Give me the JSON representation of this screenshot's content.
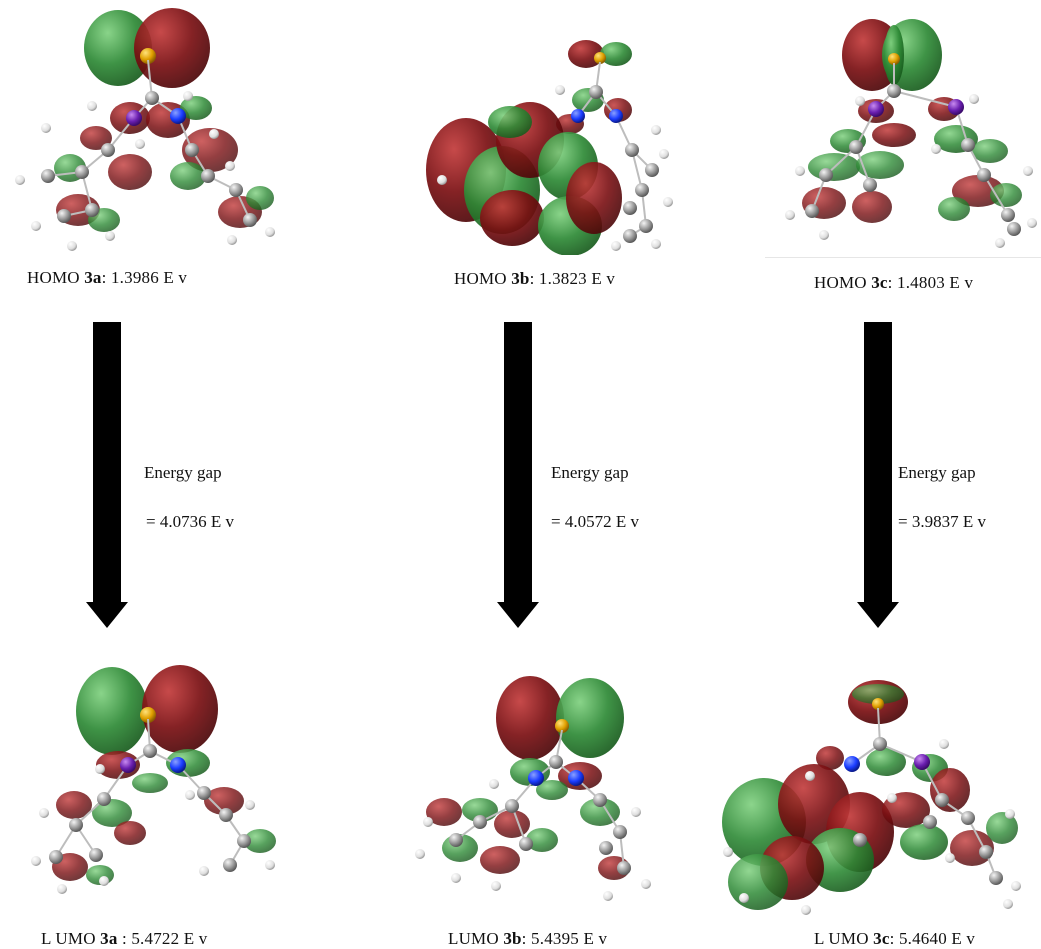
{
  "columns": [
    {
      "id": "3a",
      "homo": {
        "prefix": "HOMO ",
        "compound": "3a",
        "suffix": ": 1.3986 E v"
      },
      "lumo": {
        "prefix": "L UMO ",
        "compound": "3a",
        "suffix": " : 5.4722 E v"
      },
      "gap_label": "Energy gap",
      "gap_value": "= 4.0736 E v"
    },
    {
      "id": "3b",
      "homo": {
        "prefix": "HOMO ",
        "compound": "3b",
        "suffix": ": 1.3823 E v"
      },
      "lumo": {
        "prefix": "LUMO ",
        "compound": "3b",
        "suffix": ": 5.4395 E v"
      },
      "gap_label": "Energy gap",
      "gap_value": "= 4.0572 E v"
    },
    {
      "id": "3c",
      "homo": {
        "prefix": "HOMO ",
        "compound": "3c",
        "suffix": ": 1.4803 E v"
      },
      "lumo": {
        "prefix": "L UMO ",
        "compound": "3c",
        "suffix": ": 5.4640 E v"
      },
      "gap_label": "Energy gap",
      "gap_value": "= 3.9837 E v"
    }
  ],
  "colors": {
    "lobe_red": "#7a0f12",
    "lobe_green": "#2e8a36",
    "atom_c": "#9a9a9a",
    "atom_h": "#eeeeee",
    "atom_n": "#1a3cff",
    "atom_s": "#e0a000",
    "atom_o": "#6a1fb0",
    "arrow": "#000000"
  }
}
